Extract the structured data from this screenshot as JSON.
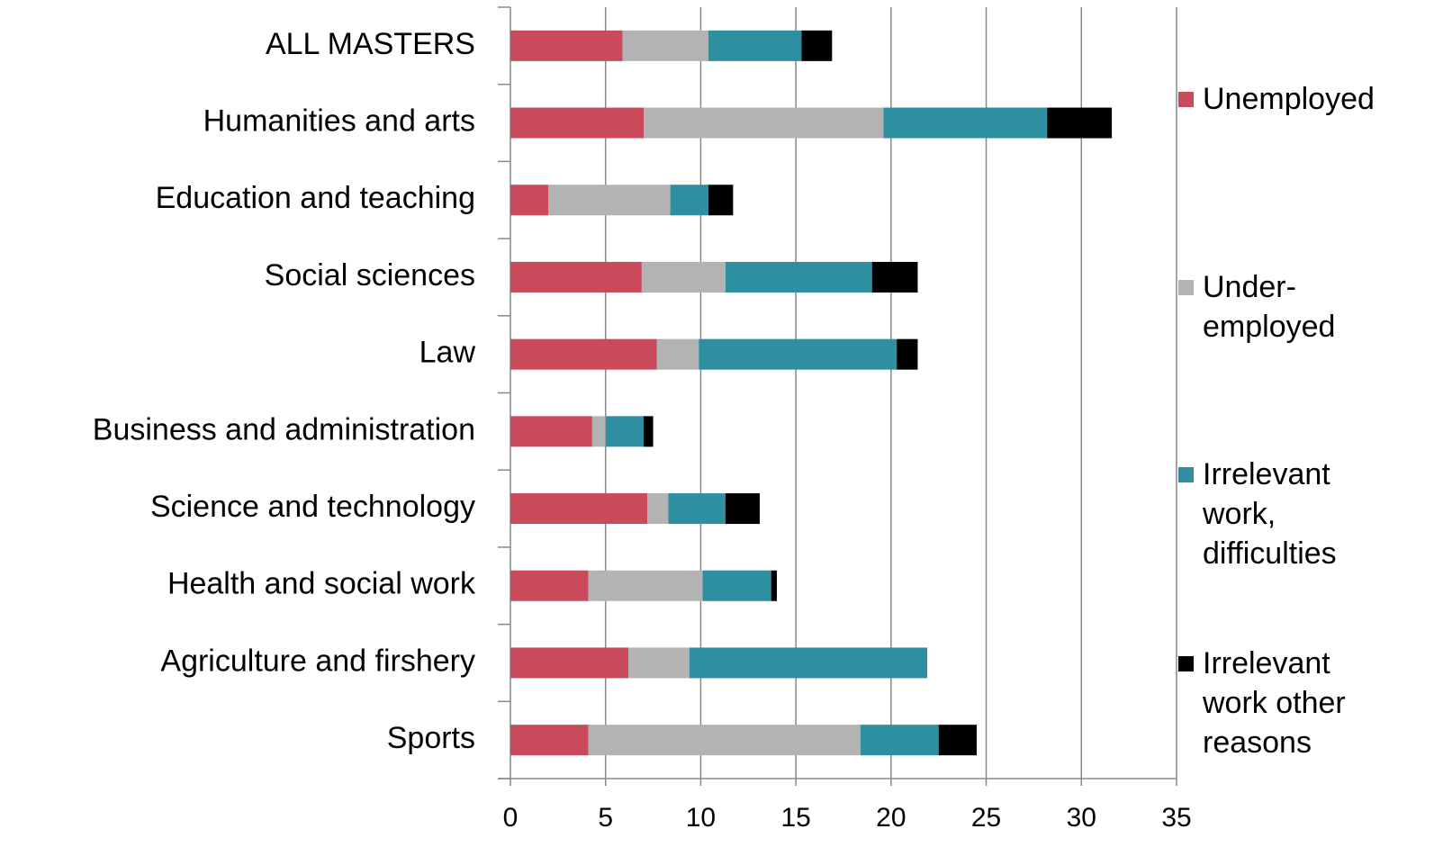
{
  "chart_data": {
    "type": "stacked-bar-horizontal",
    "categories": [
      "ALL MASTERS",
      "Humanities and arts",
      "Education and teaching",
      "Social sciences",
      "Law",
      "Business and administration",
      "Science and technology",
      "Health and social work",
      "Agriculture and firshery",
      "Sports"
    ],
    "series": [
      {
        "name": "Unemployed",
        "color": "#c94a5a",
        "values": [
          5.9,
          7.0,
          2.0,
          6.9,
          7.7,
          4.3,
          7.2,
          4.1,
          6.2,
          4.1
        ]
      },
      {
        "name": "Under-\nemployed",
        "color": "#b3b3b3",
        "values": [
          4.5,
          12.6,
          6.4,
          4.4,
          2.2,
          0.7,
          1.1,
          6.0,
          3.2,
          14.3
        ]
      },
      {
        "name": "Irrelevant\nwork,\ndifficulties",
        "color": "#2e8fa0",
        "values": [
          4.9,
          8.6,
          2.0,
          7.7,
          10.4,
          2.0,
          3.0,
          3.6,
          12.5,
          4.1
        ]
      },
      {
        "name": "Irrelevant\nwork other\nreasons",
        "color": "#000000",
        "values": [
          1.6,
          3.4,
          1.3,
          2.4,
          1.1,
          0.5,
          1.8,
          0.3,
          0,
          2.0
        ]
      }
    ],
    "xlim": [
      0,
      35
    ],
    "xticks": [
      0,
      5,
      10,
      15,
      20,
      25,
      30,
      35
    ],
    "grid": true,
    "legend": "right"
  }
}
